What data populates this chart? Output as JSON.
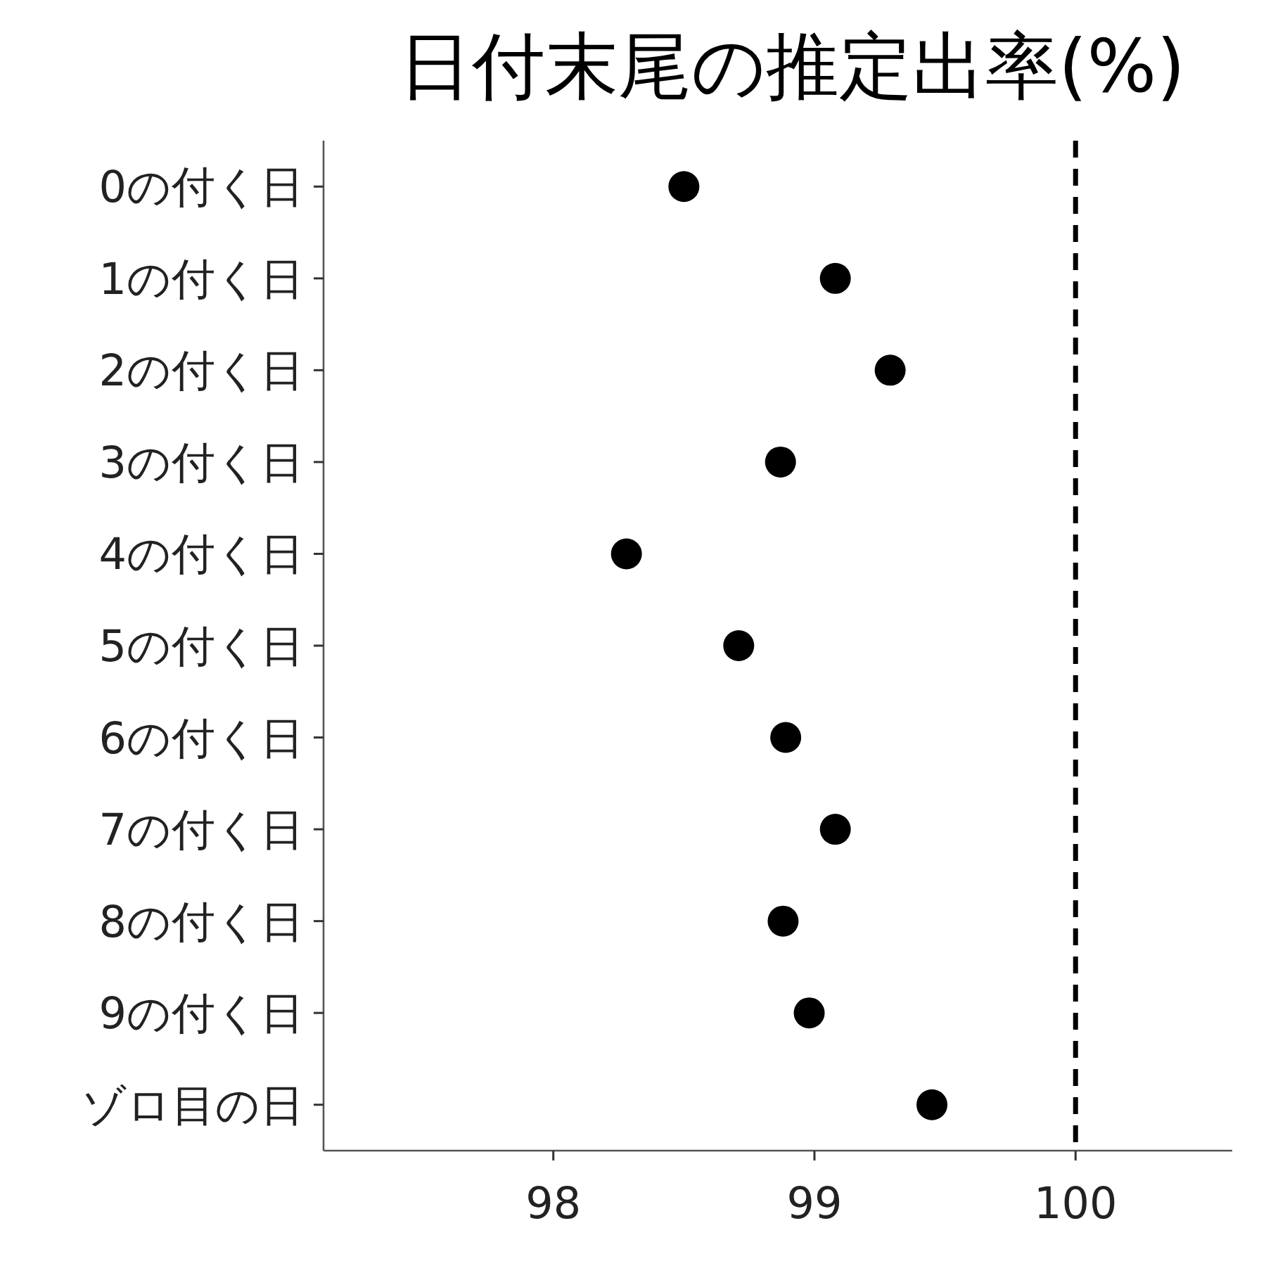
{
  "chart_data": {
    "type": "scatter",
    "title": "日付末尾の推定出率(%)",
    "orientation": "horizontal",
    "categories": [
      "0の付く日",
      "1の付く日",
      "2の付く日",
      "3の付く日",
      "4の付く日",
      "5の付く日",
      "6の付く日",
      "7の付く日",
      "8の付く日",
      "9の付く日",
      "ゾロ目の日"
    ],
    "values": [
      98.5,
      99.08,
      99.29,
      98.87,
      98.28,
      98.71,
      98.89,
      99.08,
      98.88,
      98.98,
      99.45
    ],
    "color": "#000000",
    "marker": "circle",
    "xlim": [
      97.12,
      100.6
    ],
    "xticks": [
      98,
      99,
      100
    ],
    "ref_lines": [
      {
        "axis": "x",
        "value": 100,
        "color": "#000000",
        "line_style": "dashed"
      }
    ]
  }
}
